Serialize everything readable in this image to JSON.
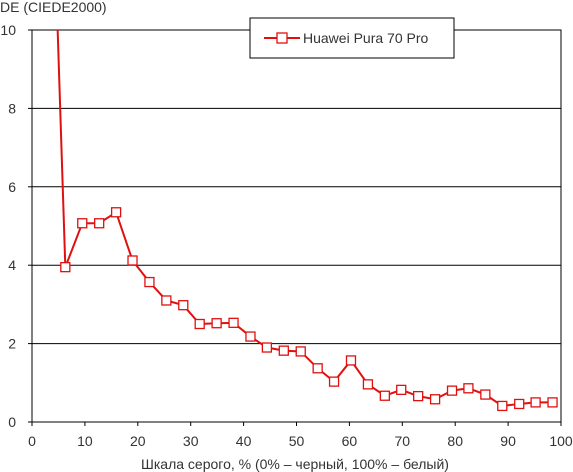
{
  "chart_data": {
    "type": "line",
    "title": "",
    "ylabel": "DE (CIEDE2000)",
    "xlabel": "Шкала серого, % (0% – черный, 100% – белый)",
    "xlim": [
      0,
      100
    ],
    "ylim": [
      0,
      10
    ],
    "x_ticks": [
      0,
      10,
      20,
      30,
      40,
      50,
      60,
      70,
      80,
      90,
      100
    ],
    "y_ticks": [
      0,
      2,
      4,
      6,
      8,
      10
    ],
    "grid": "horizontal",
    "legend": {
      "position": "top-right"
    },
    "series": [
      {
        "name": "Huawei Pura 70 Pro",
        "color": "#e01010",
        "marker": "square",
        "line_start": {
          "x": 4.8,
          "y": 10.2
        },
        "points": [
          {
            "x": 6.3,
            "y": 3.95
          },
          {
            "x": 9.5,
            "y": 5.07
          },
          {
            "x": 12.7,
            "y": 5.07
          },
          {
            "x": 15.9,
            "y": 5.35
          },
          {
            "x": 19.0,
            "y": 4.12
          },
          {
            "x": 22.2,
            "y": 3.57
          },
          {
            "x": 25.4,
            "y": 3.1
          },
          {
            "x": 28.6,
            "y": 2.98
          },
          {
            "x": 31.7,
            "y": 2.5
          },
          {
            "x": 34.9,
            "y": 2.52
          },
          {
            "x": 38.1,
            "y": 2.53
          },
          {
            "x": 41.3,
            "y": 2.18
          },
          {
            "x": 44.4,
            "y": 1.9
          },
          {
            "x": 47.6,
            "y": 1.82
          },
          {
            "x": 50.8,
            "y": 1.8
          },
          {
            "x": 54.0,
            "y": 1.37
          },
          {
            "x": 57.1,
            "y": 1.03
          },
          {
            "x": 60.3,
            "y": 1.57
          },
          {
            "x": 63.5,
            "y": 0.96
          },
          {
            "x": 66.7,
            "y": 0.67
          },
          {
            "x": 69.8,
            "y": 0.82
          },
          {
            "x": 73.0,
            "y": 0.66
          },
          {
            "x": 76.2,
            "y": 0.58
          },
          {
            "x": 79.4,
            "y": 0.8
          },
          {
            "x": 82.5,
            "y": 0.86
          },
          {
            "x": 85.7,
            "y": 0.7
          },
          {
            "x": 88.9,
            "y": 0.41
          },
          {
            "x": 92.1,
            "y": 0.46
          },
          {
            "x": 95.2,
            "y": 0.5
          },
          {
            "x": 98.4,
            "y": 0.5
          }
        ]
      }
    ]
  }
}
